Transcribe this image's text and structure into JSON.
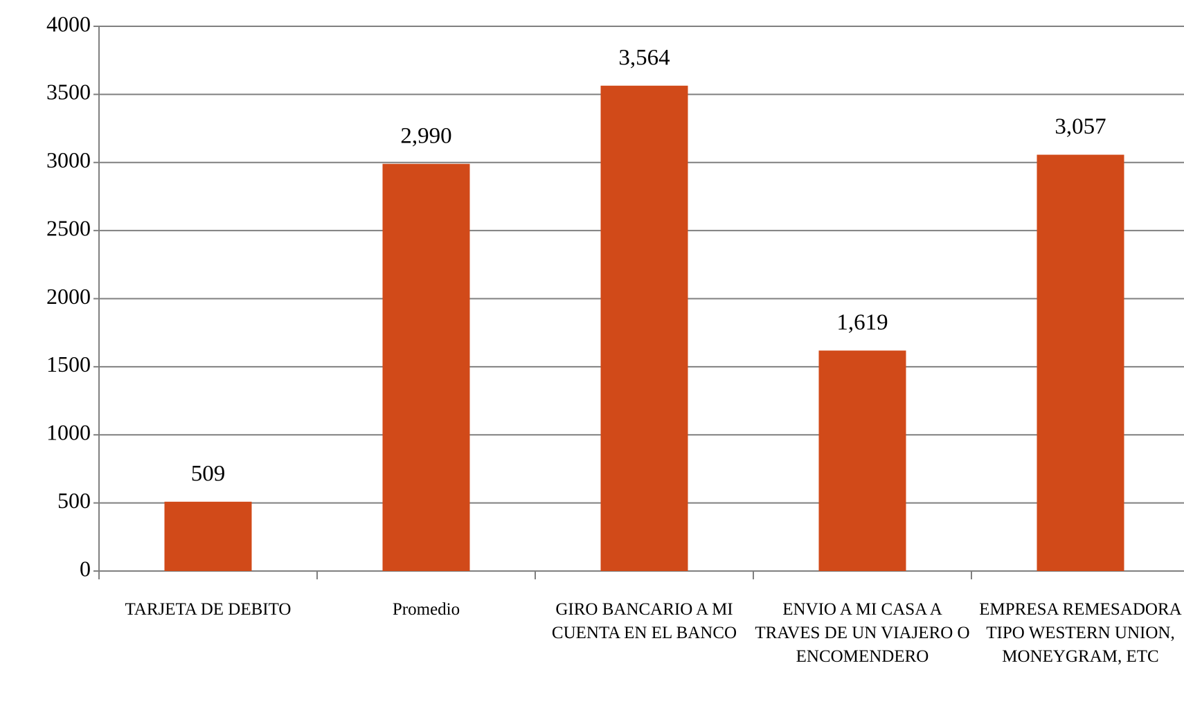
{
  "chart_data": {
    "type": "bar",
    "categories": [
      "TARJETA DE DEBITO",
      "Promedio",
      "GIRO BANCARIO A MI CUENTA EN EL BANCO",
      "ENVIO A MI CASA A TRAVES DE UN VIAJERO O ENCOMENDERO",
      "EMPRESA REMESADORA TIPO WESTERN UNION, MONEYGRAM, ETC"
    ],
    "values": [
      509,
      2990,
      3564,
      1619,
      3057
    ],
    "value_labels": [
      "509",
      "2,990",
      "3,564",
      "1,619",
      "3,057"
    ],
    "color": "#d14a19",
    "ylim": [
      0,
      4000
    ],
    "yticks": [
      0,
      500,
      1000,
      1500,
      2000,
      2500,
      3000,
      3500,
      4000
    ],
    "grid": true
  }
}
